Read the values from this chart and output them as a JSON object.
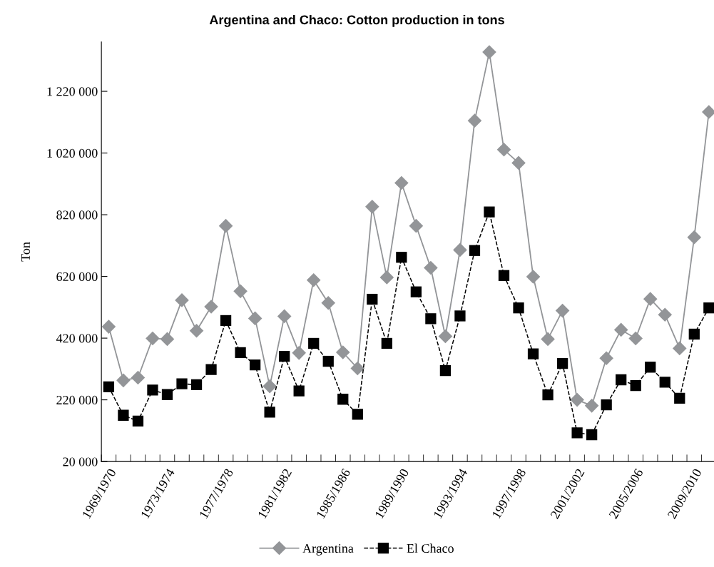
{
  "chart_data": {
    "type": "line",
    "title": "Argentina and Chaco: Cotton production in tons",
    "ylabel": "Ton",
    "categories": [
      "1969/1970",
      null,
      null,
      null,
      "1973/1974",
      null,
      null,
      null,
      "1977/1978",
      null,
      null,
      null,
      "1981/1982",
      null,
      null,
      null,
      "1985/1986",
      null,
      null,
      null,
      "1989/1990",
      null,
      null,
      null,
      "1993/1994",
      null,
      null,
      null,
      "1997/1998",
      null,
      null,
      null,
      "2001/2002",
      null,
      null,
      null,
      "2005/2006",
      null,
      null,
      null,
      "2009/2010",
      null
    ],
    "series": [
      {
        "name": "Argentina",
        "color": "#939598",
        "marker": "diamond",
        "line_style": "solid",
        "values": [
          457000,
          283000,
          292000,
          419000,
          417000,
          543000,
          444000,
          522000,
          784000,
          572000,
          484000,
          264000,
          491000,
          372000,
          608000,
          534000,
          374000,
          322000,
          846000,
          617000,
          923000,
          784000,
          648000,
          426000,
          706000,
          1125000,
          1347000,
          1031000,
          988000,
          619000,
          417000,
          509000,
          220000,
          201000,
          355000,
          447000,
          419000,
          547000,
          496000,
          387000,
          747000,
          1153000
        ]
      },
      {
        "name": "El Chaco",
        "color": "#000000",
        "marker": "square",
        "line_style": "dashed",
        "values": [
          262000,
          170000,
          151000,
          252000,
          237000,
          272000,
          269000,
          318000,
          477000,
          373000,
          333000,
          180000,
          361000,
          249000,
          403000,
          345000,
          222000,
          173000,
          546000,
          403000,
          682000,
          570000,
          483000,
          315000,
          492000,
          704000,
          829000,
          623000,
          518000,
          369000,
          236000,
          338000,
          113000,
          107000,
          204000,
          285000,
          266000,
          326000,
          277000,
          225000,
          433000,
          518000
        ]
      }
    ],
    "ylim": [
      20000,
      1380000
    ],
    "yticks": [
      {
        "value": 20000,
        "label": "20 000"
      },
      {
        "value": 220000,
        "label": "220 000"
      },
      {
        "value": 420000,
        "label": "420 000"
      },
      {
        "value": 620000,
        "label": "620 000"
      },
      {
        "value": 820000,
        "label": "820 000"
      },
      {
        "value": 1020000,
        "label": "1 020 000"
      },
      {
        "value": 1220000,
        "label": "1 220 000"
      }
    ],
    "grid": false,
    "legend": "bottom"
  }
}
